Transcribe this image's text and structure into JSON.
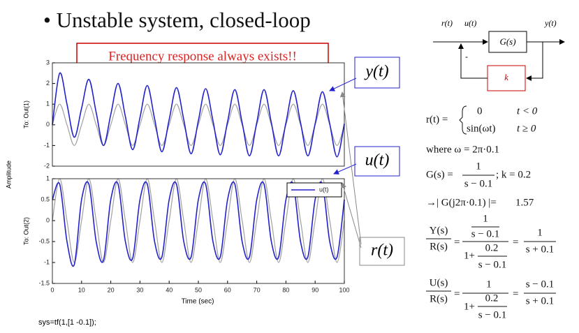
{
  "slide": {
    "title": "• Unstable system, closed-loop",
    "callout": "Frequency response always exists!!",
    "labels": [
      "y(t)",
      "u(t)",
      "r(t)"
    ],
    "code": "sys=tf(1,[1 -0.1]);",
    "amplitude": "Amplitude",
    "xlabel": "Time (sec)",
    "diagram": {
      "input": "r(t)",
      "control": "u(t)",
      "plant": "G(s)",
      "output": "y(t)",
      "gain": "k",
      "sign": "-"
    },
    "equations": {
      "r_def": [
        "r(t) =",
        "0",
        "t < 0",
        "sin(ωt)",
        "t ≥ 0"
      ],
      "where": "where ω = 2π·0.1",
      "plant": [
        "G(s) =",
        "1",
        "s − 0.1",
        "; k = 0.2"
      ],
      "gain": [
        "→| G(j2π·0.1) |=",
        "1.57"
      ],
      "yr": [
        "Y(s)",
        "R(s)",
        "=",
        "1",
        "s − 0.1",
        "1+",
        "0.2",
        "s − 0.1",
        "=",
        "1",
        "s + 0.1"
      ],
      "ur": [
        "U(s)",
        "R(s)",
        "=",
        "1",
        "1+",
        "0.2",
        "s − 0.1",
        "=",
        "s − 0.1",
        "s + 0.1"
      ]
    }
  },
  "chart_data": [
    {
      "type": "line",
      "ylabel": "To: Out(1)",
      "x": [
        0,
        2.5,
        5,
        7.5,
        10,
        12.5,
        15,
        17.5,
        20,
        22.5,
        25,
        27.5,
        30,
        32.5,
        35,
        37.5,
        40,
        42.5,
        45,
        47.5,
        50,
        52.5,
        55,
        57.5,
        60,
        62.5,
        65,
        67.5,
        70,
        72.5,
        75,
        77.5,
        80,
        82.5,
        85,
        87.5,
        90,
        92.5,
        95,
        97.5,
        100
      ],
      "series": [
        {
          "color": "#a0a0a0",
          "values": [
            0,
            1,
            0,
            -1,
            0,
            1,
            0,
            -1,
            0,
            1,
            0,
            -1,
            0,
            1,
            0,
            -1,
            0,
            1,
            0,
            -1,
            0,
            1,
            0,
            -1,
            0,
            1,
            0,
            -1,
            0,
            1,
            0,
            -1,
            0,
            1,
            0,
            -1,
            0,
            1,
            0,
            -1,
            0
          ]
        },
        {
          "color": "#2222cc",
          "values": [
            0,
            2.5,
            1.0,
            -0.6,
            0.8,
            2.2,
            0.6,
            -1.0,
            0.5,
            2.0,
            0.4,
            -1.2,
            0.35,
            1.9,
            0.3,
            -1.3,
            0.25,
            1.8,
            0.25,
            -1.4,
            0.2,
            1.75,
            0.2,
            -1.45,
            0.15,
            1.7,
            0.1,
            -1.5,
            0.1,
            1.7,
            0.1,
            -1.5,
            0.1,
            1.65,
            0.1,
            -1.5,
            0.05,
            1.6,
            0.05,
            -1.55,
            0.05
          ]
        }
      ],
      "xlim": [
        0,
        100
      ],
      "ylim": [
        -2,
        3
      ],
      "yticks": [
        -2,
        -1,
        0,
        1,
        2,
        3
      ],
      "grid": false
    },
    {
      "type": "line",
      "ylabel": "To: Out(2)",
      "x": [
        0,
        2.5,
        5,
        7.5,
        10,
        12.5,
        15,
        17.5,
        20,
        22.5,
        25,
        27.5,
        30,
        32.5,
        35,
        37.5,
        40,
        42.5,
        45,
        47.5,
        50,
        52.5,
        55,
        57.5,
        60,
        62.5,
        65,
        67.5,
        70,
        72.5,
        75,
        77.5,
        80,
        82.5,
        85,
        87.5,
        90,
        92.5,
        95,
        97.5,
        100
      ],
      "series": [
        {
          "color": "#a0a0a0",
          "values": [
            0,
            1,
            0,
            -1,
            0,
            1,
            0,
            -1,
            0,
            1,
            0,
            -1,
            0,
            1,
            0,
            -1,
            0,
            1,
            0,
            -1,
            0,
            1,
            0,
            -1,
            0,
            1,
            0,
            -1,
            0,
            1,
            0,
            -1,
            0,
            1,
            0,
            -1,
            0,
            1,
            0,
            -1,
            0
          ]
        },
        {
          "name": "u(t)",
          "color": "#2222cc",
          "values": [
            0.5,
            0.87,
            -0.5,
            -1.05,
            0.5,
            0.87,
            -0.5,
            -0.95,
            0.5,
            0.87,
            -0.5,
            -0.9,
            0.5,
            0.87,
            -0.5,
            -0.87,
            0.5,
            0.87,
            -0.5,
            -0.87,
            0.5,
            0.87,
            -0.5,
            -0.87,
            0.5,
            0.87,
            -0.5,
            -0.87,
            0.5,
            0.87,
            -0.5,
            -0.87,
            0.5,
            0.87,
            -0.5,
            -0.87,
            0.5,
            0.87,
            -0.5,
            -0.87,
            0.5
          ]
        }
      ],
      "xlim": [
        0,
        100
      ],
      "ylim": [
        -1.5,
        1
      ],
      "yticks": [
        -1.5,
        -1,
        -0.5,
        0,
        0.5,
        1
      ],
      "xticks": [
        0,
        10,
        20,
        30,
        40,
        50,
        60,
        70,
        80,
        90,
        100
      ],
      "grid": false,
      "legend": "upper right"
    }
  ]
}
